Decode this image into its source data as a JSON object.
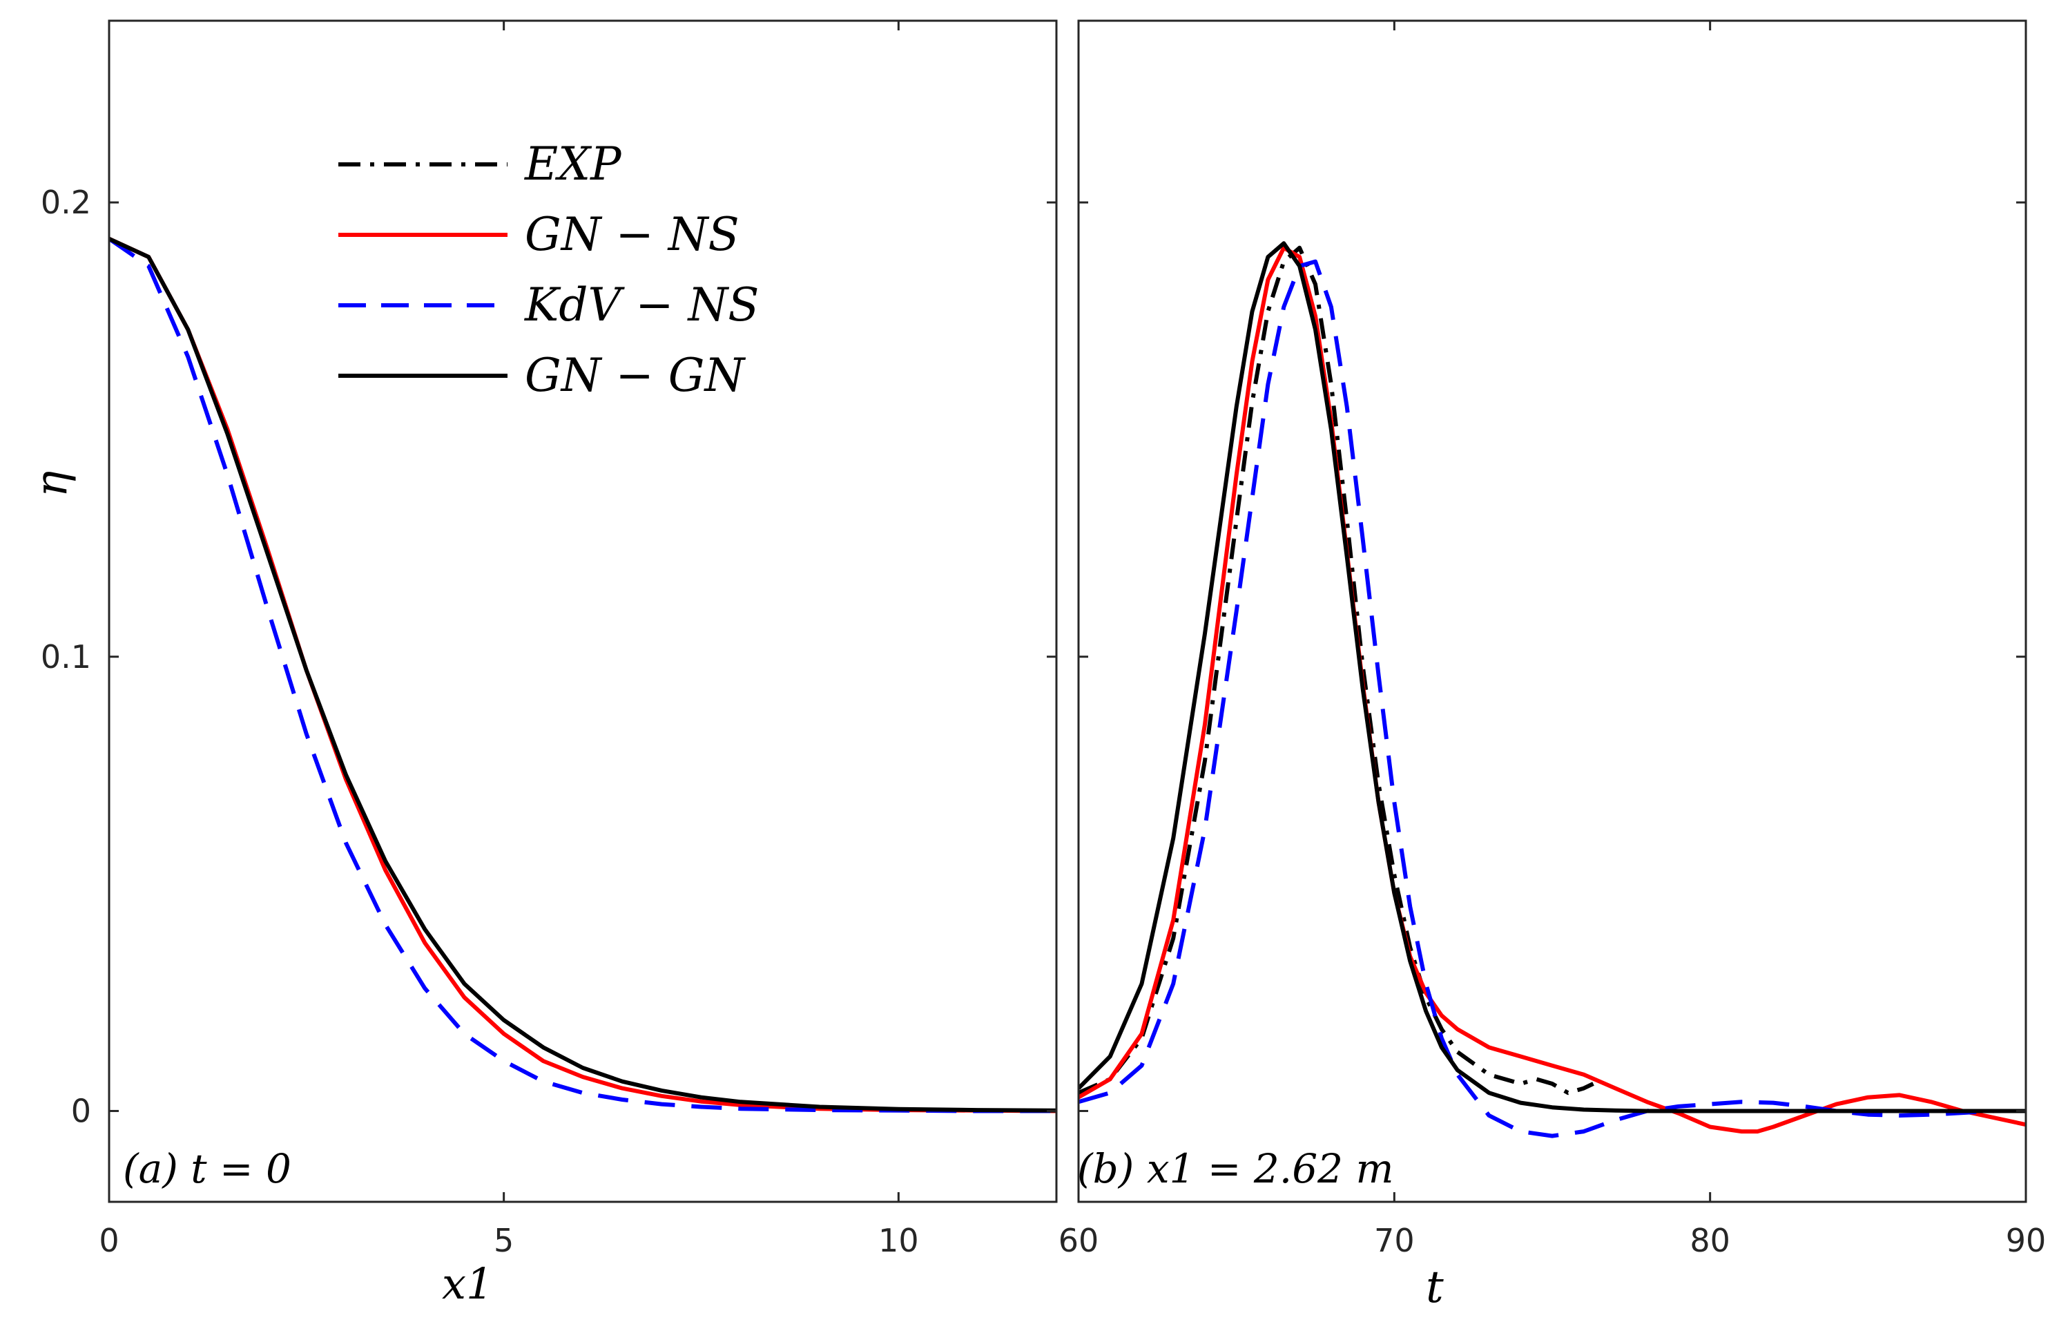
{
  "chart_data": [
    {
      "type": "line",
      "panel_label": "(a) t = 0",
      "xlabel": "x1",
      "ylabel": "η",
      "xlim": [
        0,
        12
      ],
      "ylim": [
        -0.02,
        0.24
      ],
      "x_ticks": [
        0,
        5,
        10
      ],
      "x_tick_labels": [
        "0",
        "5",
        "10"
      ],
      "y_ticks": [
        0,
        0.1,
        0.2
      ],
      "y_tick_labels": [
        "0",
        "0.1",
        "0.2"
      ],
      "legend": {
        "placement": "top-center",
        "entries": [
          {
            "label": "EXP",
            "color": "#000000",
            "style": "dash-dot"
          },
          {
            "label": "GN − NS",
            "color": "#ff0000",
            "style": "solid"
          },
          {
            "label": "KdV − NS",
            "color": "#0000ff",
            "style": "dashed"
          },
          {
            "label": "GN − GN",
            "color": "#000000",
            "style": "solid"
          }
        ]
      },
      "series": [
        {
          "name": "GN − NS",
          "color": "#ff0000",
          "style": "solid",
          "x": [
            0,
            0.5,
            1,
            1.5,
            2,
            2.5,
            3,
            3.5,
            4,
            4.5,
            5,
            5.5,
            6,
            6.5,
            7,
            7.5,
            8,
            9,
            10,
            11,
            12
          ],
          "y": [
            0.192,
            0.188,
            0.172,
            0.15,
            0.124,
            0.097,
            0.073,
            0.053,
            0.037,
            0.025,
            0.017,
            0.011,
            0.0075,
            0.005,
            0.0033,
            0.0021,
            0.0013,
            0.0005,
            0.0002,
            0.0001,
            0
          ]
        },
        {
          "name": "KdV − NS",
          "color": "#0000ff",
          "style": "dashed",
          "x": [
            0,
            0.5,
            1,
            1.5,
            2,
            2.5,
            3,
            3.5,
            4,
            4.5,
            5,
            5.5,
            6,
            6.5,
            7,
            7.5,
            8,
            9,
            10,
            11,
            12
          ],
          "y": [
            0.192,
            0.186,
            0.166,
            0.14,
            0.111,
            0.083,
            0.059,
            0.041,
            0.027,
            0.017,
            0.011,
            0.0065,
            0.004,
            0.0025,
            0.0015,
            0.0009,
            0.0005,
            0.0002,
            0.0001,
            0,
            0
          ]
        },
        {
          "name": "GN − GN",
          "color": "#000000",
          "style": "solid",
          "x": [
            0,
            0.5,
            1,
            1.5,
            2,
            2.5,
            3,
            3.5,
            4,
            4.5,
            5,
            5.5,
            6,
            6.5,
            7,
            7.5,
            8,
            9,
            10,
            11,
            12
          ],
          "y": [
            0.192,
            0.188,
            0.172,
            0.149,
            0.123,
            0.097,
            0.074,
            0.055,
            0.04,
            0.028,
            0.02,
            0.014,
            0.0095,
            0.0065,
            0.0045,
            0.003,
            0.002,
            0.0009,
            0.0004,
            0.0002,
            0.0001
          ]
        }
      ]
    },
    {
      "type": "line",
      "panel_label": "(b) x1 = 2.62 m",
      "xlabel": "t",
      "ylabel": "",
      "xlim": [
        60,
        90
      ],
      "ylim": [
        -0.02,
        0.24
      ],
      "x_ticks": [
        60,
        70,
        80,
        90
      ],
      "x_tick_labels": [
        "60",
        "70",
        "80",
        "90"
      ],
      "y_ticks": [
        0,
        0.1,
        0.2
      ],
      "series": [
        {
          "name": "EXP",
          "color": "#000000",
          "style": "dash-dot",
          "x": [
            60,
            61,
            62,
            63,
            64,
            65,
            65.5,
            66,
            66.5,
            67,
            67.5,
            68,
            68.5,
            69,
            69.5,
            70,
            70.5,
            71,
            71.5,
            72,
            73,
            74,
            74.5,
            75,
            75.5,
            76,
            76.3
          ],
          "y": [
            0.004,
            0.007,
            0.016,
            0.038,
            0.077,
            0.13,
            0.156,
            0.176,
            0.187,
            0.19,
            0.182,
            0.16,
            0.13,
            0.098,
            0.072,
            0.052,
            0.036,
            0.025,
            0.018,
            0.013,
            0.008,
            0.006,
            0.007,
            0.006,
            0.004,
            0.005,
            0.006
          ]
        },
        {
          "name": "GN − NS",
          "color": "#ff0000",
          "style": "solid",
          "x": [
            60,
            61,
            62,
            63,
            64,
            65,
            65.5,
            66,
            66.5,
            67,
            67.5,
            68,
            68.5,
            69,
            69.5,
            70,
            70.5,
            71,
            71.5,
            72,
            73,
            74,
            75,
            76,
            77,
            78,
            79,
            80,
            81,
            81.5,
            82,
            83,
            84,
            85,
            86,
            87,
            88,
            89,
            90
          ],
          "y": [
            0.003,
            0.007,
            0.017,
            0.042,
            0.085,
            0.14,
            0.165,
            0.183,
            0.19,
            0.188,
            0.175,
            0.152,
            0.123,
            0.094,
            0.068,
            0.048,
            0.034,
            0.026,
            0.021,
            0.018,
            0.014,
            0.012,
            0.01,
            0.008,
            0.005,
            0.002,
            -0.0005,
            -0.0035,
            -0.0045,
            -0.0045,
            -0.0035,
            -0.001,
            0.0015,
            0.003,
            0.0035,
            0.002,
            0,
            -0.0015,
            -0.003
          ]
        },
        {
          "name": "KdV − NS",
          "color": "#0000ff",
          "style": "dashed",
          "x": [
            60,
            61,
            62,
            63,
            64,
            65,
            66,
            66.5,
            67,
            67.5,
            68,
            68.5,
            69,
            69.5,
            70,
            70.5,
            71,
            71.5,
            72,
            73,
            74,
            75,
            76,
            77,
            78,
            79,
            80,
            81,
            82,
            83,
            84,
            85,
            86,
            87,
            88,
            89,
            90
          ],
          "y": [
            0.002,
            0.004,
            0.01,
            0.028,
            0.062,
            0.11,
            0.16,
            0.177,
            0.186,
            0.187,
            0.177,
            0.155,
            0.126,
            0.096,
            0.068,
            0.045,
            0.028,
            0.016,
            0.008,
            -0.001,
            -0.0045,
            -0.0055,
            -0.0045,
            -0.002,
            0,
            0.001,
            0.0015,
            0.002,
            0.0018,
            0.001,
            0,
            -0.0008,
            -0.001,
            -0.0008,
            -0.0004,
            0,
            0
          ]
        },
        {
          "name": "GN − GN",
          "color": "#000000",
          "style": "solid",
          "x": [
            60,
            61,
            62,
            63,
            64,
            65,
            65.5,
            66,
            66.5,
            67,
            67.5,
            68,
            68.5,
            69,
            69.5,
            70,
            70.5,
            71,
            71.5,
            72,
            73,
            74,
            75,
            76,
            77,
            78,
            80,
            85,
            90
          ],
          "y": [
            0.005,
            0.012,
            0.028,
            0.06,
            0.105,
            0.155,
            0.176,
            0.188,
            0.191,
            0.186,
            0.172,
            0.15,
            0.122,
            0.093,
            0.068,
            0.048,
            0.033,
            0.022,
            0.014,
            0.009,
            0.004,
            0.0018,
            0.0008,
            0.0003,
            0.0001,
            0,
            0,
            0,
            0
          ]
        }
      ]
    }
  ]
}
